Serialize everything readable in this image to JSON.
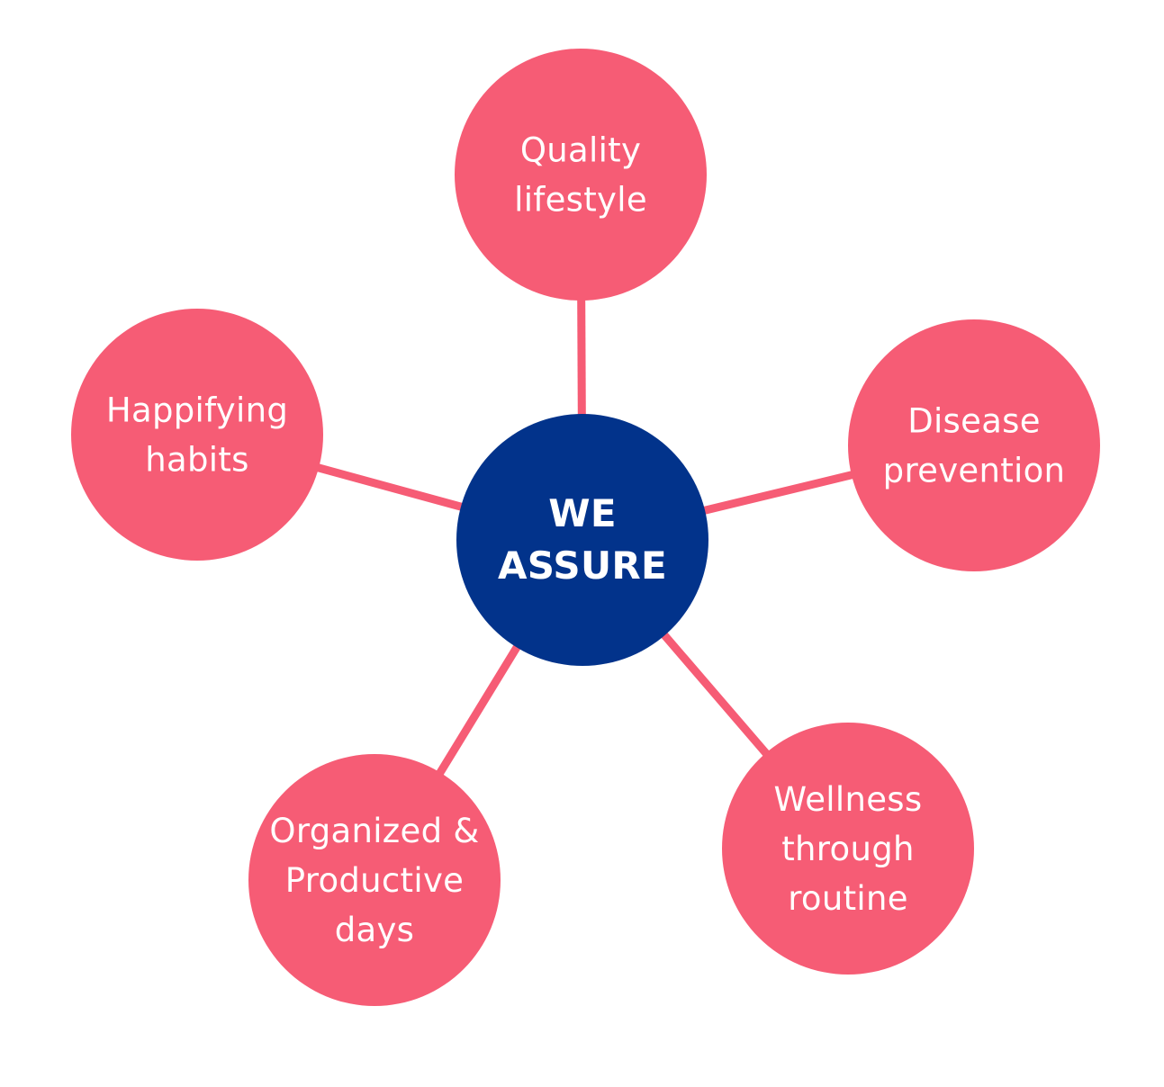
{
  "colors": {
    "background": "#ffffff",
    "outer_node": "#f65c75",
    "connector": "#f65c75",
    "center_node": "#02338b",
    "text": "#ffffff"
  },
  "center": {
    "lines": [
      "WE",
      "ASSURE"
    ]
  },
  "nodes": [
    {
      "key": "quality",
      "lines": [
        "Quality",
        "lifestyle"
      ]
    },
    {
      "key": "disease",
      "lines": [
        "Disease",
        "prevention"
      ]
    },
    {
      "key": "wellness",
      "lines": [
        "Wellness",
        "through",
        "routine"
      ]
    },
    {
      "key": "organized",
      "lines": [
        "Organized &",
        "Productive",
        "days"
      ]
    },
    {
      "key": "happifying",
      "lines": [
        "Happifying",
        "habits"
      ]
    }
  ]
}
